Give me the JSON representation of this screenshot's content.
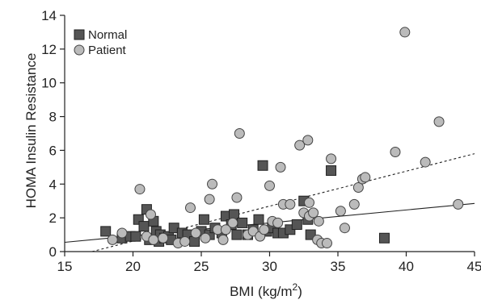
{
  "chart_data": {
    "type": "scatter",
    "xlabel": "BMI (kg/m",
    "xlabel_sup": "2",
    "xlabel_close": ")",
    "ylabel": "HOMA Insulin Resistance",
    "xlim": [
      15,
      45
    ],
    "ylim": [
      0,
      14
    ],
    "xticks": [
      "15",
      "20",
      "25",
      "30",
      "35",
      "40",
      "45"
    ],
    "yticks": [
      "0",
      "2",
      "4",
      "6",
      "8",
      "10",
      "12",
      "14"
    ],
    "legend_position": "top-left",
    "series": [
      {
        "name": "Normal",
        "marker": "square",
        "color": "#555555",
        "points": [
          [
            18.0,
            1.2
          ],
          [
            19.2,
            0.8
          ],
          [
            19.8,
            0.9
          ],
          [
            20.4,
            1.9
          ],
          [
            20.8,
            1.5
          ],
          [
            21.0,
            2.5
          ],
          [
            21.2,
            0.7
          ],
          [
            21.5,
            1.8
          ],
          [
            21.7,
            1.2
          ],
          [
            21.9,
            0.6
          ],
          [
            22.0,
            1.0
          ],
          [
            22.3,
            0.8
          ],
          [
            22.6,
            0.9
          ],
          [
            23.0,
            1.4
          ],
          [
            23.6,
            1.1
          ],
          [
            24.0,
            1.0
          ],
          [
            24.5,
            0.6
          ],
          [
            25.0,
            1.2
          ],
          [
            25.2,
            1.9
          ],
          [
            25.6,
            1.0
          ],
          [
            26.0,
            1.4
          ],
          [
            26.5,
            1.1
          ],
          [
            26.8,
            2.1
          ],
          [
            27.2,
            1.6
          ],
          [
            27.4,
            2.2
          ],
          [
            27.6,
            1.0
          ],
          [
            28.0,
            1.7
          ],
          [
            28.4,
            1.0
          ],
          [
            28.8,
            1.3
          ],
          [
            29.2,
            1.9
          ],
          [
            29.5,
            5.1
          ],
          [
            29.8,
            1.2
          ],
          [
            30.2,
            1.4
          ],
          [
            30.6,
            1.1
          ],
          [
            31.0,
            1.1
          ],
          [
            31.5,
            1.3
          ],
          [
            32.0,
            1.6
          ],
          [
            32.5,
            3.0
          ],
          [
            32.8,
            1.9
          ],
          [
            33.0,
            1.0
          ],
          [
            34.5,
            4.8
          ],
          [
            38.4,
            0.8
          ],
          [
            20.2,
            0.9
          ],
          [
            22.8,
            0.7
          ]
        ]
      },
      {
        "name": "Patient",
        "marker": "circle",
        "color": "#bbbbbb",
        "points": [
          [
            18.5,
            0.7
          ],
          [
            19.2,
            1.1
          ],
          [
            20.5,
            3.7
          ],
          [
            21.0,
            0.9
          ],
          [
            21.3,
            2.2
          ],
          [
            21.5,
            0.7
          ],
          [
            22.2,
            0.8
          ],
          [
            23.3,
            0.5
          ],
          [
            23.8,
            0.6
          ],
          [
            24.2,
            2.6
          ],
          [
            24.6,
            1.1
          ],
          [
            25.3,
            0.8
          ],
          [
            25.6,
            3.1
          ],
          [
            25.8,
            4.0
          ],
          [
            26.2,
            1.3
          ],
          [
            26.6,
            0.7
          ],
          [
            26.8,
            1.3
          ],
          [
            27.3,
            1.7
          ],
          [
            27.6,
            3.2
          ],
          [
            27.8,
            7.0
          ],
          [
            28.4,
            1.0
          ],
          [
            28.8,
            1.2
          ],
          [
            29.3,
            0.9
          ],
          [
            29.6,
            1.3
          ],
          [
            30.0,
            3.9
          ],
          [
            30.2,
            1.8
          ],
          [
            30.6,
            1.7
          ],
          [
            30.8,
            5.0
          ],
          [
            31.0,
            2.8
          ],
          [
            31.5,
            2.8
          ],
          [
            32.2,
            6.3
          ],
          [
            32.5,
            2.3
          ],
          [
            32.8,
            6.6
          ],
          [
            32.9,
            2.1
          ],
          [
            33.2,
            2.3
          ],
          [
            33.5,
            0.7
          ],
          [
            33.6,
            1.8
          ],
          [
            33.8,
            0.5
          ],
          [
            34.2,
            0.5
          ],
          [
            34.5,
            5.5
          ],
          [
            35.2,
            2.4
          ],
          [
            35.5,
            1.4
          ],
          [
            36.2,
            2.8
          ],
          [
            36.5,
            3.8
          ],
          [
            36.8,
            4.3
          ],
          [
            37.0,
            4.4
          ],
          [
            39.2,
            5.9
          ],
          [
            39.9,
            13.0
          ],
          [
            41.4,
            5.3
          ],
          [
            42.4,
            7.7
          ],
          [
            43.8,
            2.8
          ],
          [
            32.9,
            2.9
          ]
        ]
      }
    ],
    "trend_lines": [
      {
        "series": "Normal",
        "style": "solid",
        "from": [
          15,
          0.55
        ],
        "to": [
          45,
          2.85
        ]
      },
      {
        "series": "Patient",
        "style": "dashed",
        "from": [
          17,
          0.0
        ],
        "to": [
          45,
          5.8
        ]
      }
    ]
  }
}
